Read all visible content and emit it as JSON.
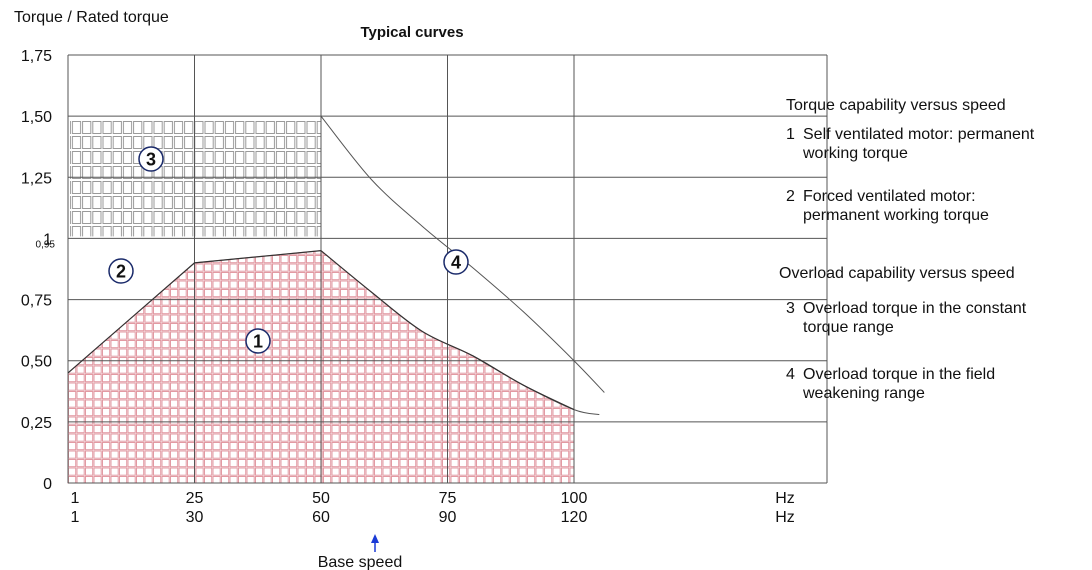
{
  "chart_data": {
    "type": "area",
    "title": "Typical curves",
    "ylabel": "Torque / Rated torque",
    "x_unit": "Hz",
    "xlim": [
      0,
      150
    ],
    "ylim": [
      0,
      1.75
    ],
    "y_ticks": [
      {
        "value": 0,
        "label": "0"
      },
      {
        "value": 0.25,
        "label": "0,25"
      },
      {
        "value": 0.5,
        "label": "0,50"
      },
      {
        "value": 0.75,
        "label": "0,75"
      },
      {
        "value": 1.0,
        "label": "1"
      },
      {
        "value": 1.25,
        "label": "1,25"
      },
      {
        "value": 1.5,
        "label": "1,50"
      },
      {
        "value": 1.75,
        "label": "1,75"
      }
    ],
    "y_extra_label": {
      "value": 1.0,
      "label": "0,95"
    },
    "x_ticks_50hz": [
      {
        "value": 0,
        "label": "1"
      },
      {
        "value": 25,
        "label": "25"
      },
      {
        "value": 50,
        "label": "50"
      },
      {
        "value": 75,
        "label": "75"
      },
      {
        "value": 100,
        "label": "100"
      }
    ],
    "x_ticks_60hz": [
      "1",
      "30",
      "60",
      "90",
      "120"
    ],
    "x_unit_labels": [
      "Hz",
      "Hz"
    ],
    "base_speed": {
      "x": 50,
      "label": "Base speed"
    },
    "series": [
      {
        "id": "1",
        "x": [
          0,
          25,
          50,
          60,
          70,
          80,
          90,
          100
        ],
        "y": [
          0.45,
          0.9,
          0.95,
          0.78,
          0.62,
          0.52,
          0.4,
          0.3
        ]
      },
      {
        "id": "3",
        "x": [
          0,
          50
        ],
        "y": [
          1.5,
          1.5
        ]
      },
      {
        "id": "4",
        "x": [
          50,
          60,
          70,
          80,
          90,
          100,
          106
        ],
        "y": [
          1.5,
          1.24,
          1.05,
          0.88,
          0.7,
          0.5,
          0.37
        ]
      },
      {
        "id": "2-4",
        "x": [
          80,
          90,
          100,
          105
        ],
        "y": [
          0.52,
          0.4,
          0.3,
          0.28
        ]
      }
    ],
    "region_markers": [
      {
        "id": "1",
        "label": "1"
      },
      {
        "id": "2",
        "label": "2"
      },
      {
        "id": "3",
        "label": "3"
      },
      {
        "id": "4",
        "label": "4"
      }
    ],
    "legend": {
      "heading1": "Torque capability versus speed",
      "items1": [
        {
          "num": "1",
          "text": "Self ventilated motor: permanent working torque"
        },
        {
          "num": "2",
          "text": "Forced ventilated motor: permanent working torque"
        }
      ],
      "heading2": "Overload capability versus speed",
      "items2": [
        {
          "num": "3",
          "text": "Overload torque in the constant torque range"
        },
        {
          "num": "4",
          "text": "Overload torque in the field weakening range"
        }
      ]
    },
    "colors": {
      "fill_1": "#e8a0a8",
      "grid_3": "#9a9a9a",
      "marker": "#1a2a6a",
      "arrow": "#1a3ad6"
    }
  }
}
